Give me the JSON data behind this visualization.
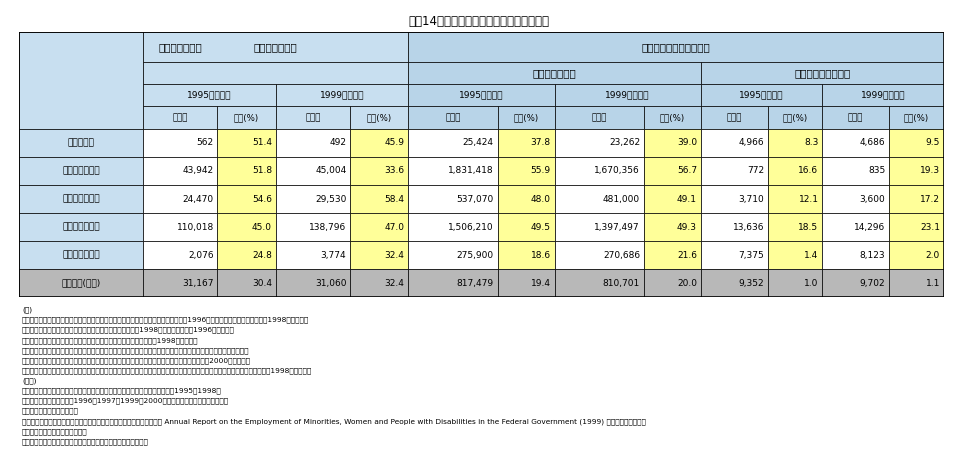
{
  "title": "資饤14　女性国家公務員の採用・在職状況",
  "rows": [
    [
      "ド　イ　ツ",
      "562",
      "51.4",
      "492",
      "45.9",
      "25,424",
      "37.8",
      "23,262",
      "39.0",
      "4,966",
      "8.3",
      "4,686",
      "9.5"
    ],
    [
      "フ　ラ　ン　ス",
      "43,942",
      "51.8",
      "45,004",
      "33.6",
      "1,831,418",
      "55.9",
      "1,670,356",
      "56.7",
      "772",
      "16.6",
      "835",
      "19.3"
    ],
    [
      "イ　ギ　リ　ス",
      "24,470",
      "54.6",
      "29,530",
      "58.4",
      "537,070",
      "48.0",
      "481,000",
      "49.1",
      "3,710",
      "12.1",
      "3,600",
      "17.2"
    ],
    [
      "ア　メ　リ　カ",
      "110,018",
      "45.0",
      "138,796",
      "47.0",
      "1,506,210",
      "49.5",
      "1,397,497",
      "49.3",
      "13,636",
      "18.5",
      "14,296",
      "23.1"
    ],
    [
      "大　韓　民　国",
      "2,076",
      "24.8",
      "3,774",
      "32.4",
      "275,900",
      "18.6",
      "270,686",
      "21.6",
      "7,375",
      "1.4",
      "8,123",
      "2.0"
    ],
    [
      "日　　本(参考)",
      "31,167",
      "30.4",
      "31,060",
      "32.4",
      "817,479",
      "19.4",
      "810,701",
      "20.0",
      "9,352",
      "1.0",
      "9,702",
      "1.1"
    ]
  ],
  "h_saiyo": "採　　用　　者",
  "h_zaishoku": "在　　　　職　　　　者",
  "h_zenshokuin": "全　　職　　員",
  "h_jyoui": "上　位　の　役　職",
  "h_1995_1": "1995年　＊１",
  "h_1999_2": "1999年　＊２",
  "h_1995_3": "1995年　＊３",
  "h_1999_4": "1999年　＊４",
  "h_1995_5": "1995年　＊５",
  "h_1999_6": "1999年　＊６",
  "h_zentai": "全　体",
  "h_josei": "女性(%)",
  "notes": [
    "(注)",
    "　ドイツ：最上級連邦官庁、「上位の役職」はフルタイム高級職員。＊１及び＊５は1996年データ、＊２、＊４、＊６は1998年データ。",
    "　フランス：「上位の役職」は次長及び局長。＊２、＊４は1998年データ、＊５は1996年データ。",
    "　イギリス：「上位の役職」はグレード４・５（課長）以上。＊２は1998年データ。",
    "　アメリカ：「採用者」は常勤職員、「全職員」はホワイトカラー（一般俧給表）、「上位の役職」は上級管理職。",
    "　大韓民国：「採用者」及び「全職員」は一般職、「上位の役職」は４級（課長）以上。＊２は2000年データ。",
    "　日　　本：「採用者」及び「全職員」は一般職、「上位の役職」は行政職（一））９級以上及び指定職。＊２、＊４、＊６は1998年データ。",
    "(資料)",
    "　ドイツ：連邦勤務における女性の地位向上における連邦政府の第４次報告（1995－1998）",
    "　フランス：年次報告書（1996－1997、1999－2000）公務員・国家改革・地方分権省",
    "　イギリス：内閣府提供資料",
    "　アメリカ：採用者については人事管理庁提供資料、在職者については Annual Report on the Employment of Minorities, Women and People with Disabilities in the Federal Government (1999) 雇用機会均等委員会",
    "　大韓民国：行政自治部提供資料",
    "　日　　本：人事院「一般職の国家公務員の任用状況調査報告」"
  ],
  "color_header_blue": "#c8dff0",
  "color_header_blue2": "#b8d4e8",
  "color_yellow": "#ffff99",
  "color_japan_bg": "#b8b8b8",
  "color_white": "#ffffff",
  "color_border": "#000000"
}
